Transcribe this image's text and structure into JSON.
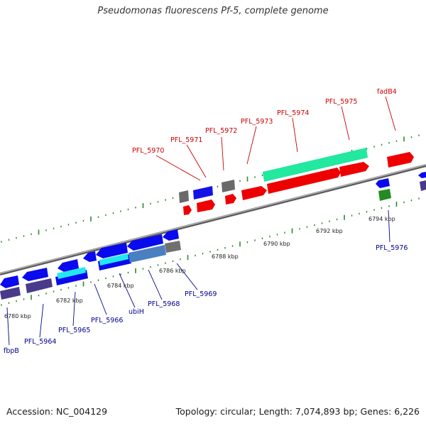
{
  "title": "Pseudomonas fluorescens Pf-5, complete genome",
  "footer": {
    "accession": "Accession: NC_004129",
    "topology": "Topology: circular; Length: 7,074,893 bp; Genes: 6,226"
  },
  "colors": {
    "forward_strand_label": "#cc0000",
    "reverse_strand_label": "#00008b",
    "backbone": "#8a8a8a",
    "tick": "#2a8a2a",
    "gene_red": "#ee0000",
    "gene_blue": "#0a0aee",
    "gene_teal": "#22e8a0",
    "gene_cyan": "#22e8f0",
    "gene_steel": "#4a80c0",
    "gene_grey": "#707070",
    "gene_purple": "#4a3a8a",
    "gene_green": "#228b22"
  },
  "scale_labels": [
    "6780 kbp",
    "6782 kbp",
    "6784 kbp",
    "6786 kbp",
    "6788 kbp",
    "6790 kbp",
    "6792 kbp",
    "6794 kbp"
  ],
  "gene_labels_forward": [
    "PFL_5970",
    "PFL_5971",
    "PFL_5972",
    "PFL_5973",
    "PFL_5974",
    "PFL_5975",
    "fadB4"
  ],
  "gene_labels_reverse": [
    "fbpB",
    "PFL_5964",
    "PFL_5965",
    "PFL_5966",
    "ubiH",
    "PFL_5968",
    "PFL_5969",
    "PFL_5976"
  ]
}
